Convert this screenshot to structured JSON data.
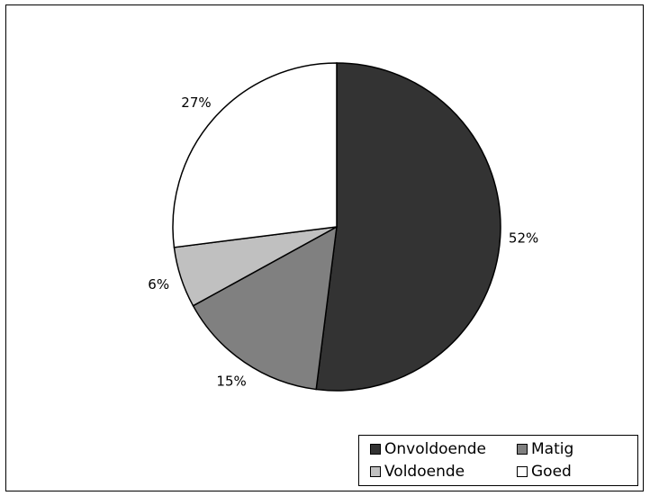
{
  "chart_data": {
    "type": "pie",
    "title": "",
    "slices": [
      {
        "label": "Onvoldoende",
        "value": 52,
        "value_label": "52%",
        "color": "#333333"
      },
      {
        "label": "Matig",
        "value": 15,
        "value_label": "15%",
        "color": "#808080"
      },
      {
        "label": "Voldoende",
        "value": 6,
        "value_label": "6%",
        "color": "#c0c0c0"
      },
      {
        "label": "Goed",
        "value": 27,
        "value_label": "27%",
        "color": "#ffffff"
      }
    ],
    "start_angle": "12 o'clock",
    "direction": "clockwise",
    "legend_position": "bottom-right"
  }
}
